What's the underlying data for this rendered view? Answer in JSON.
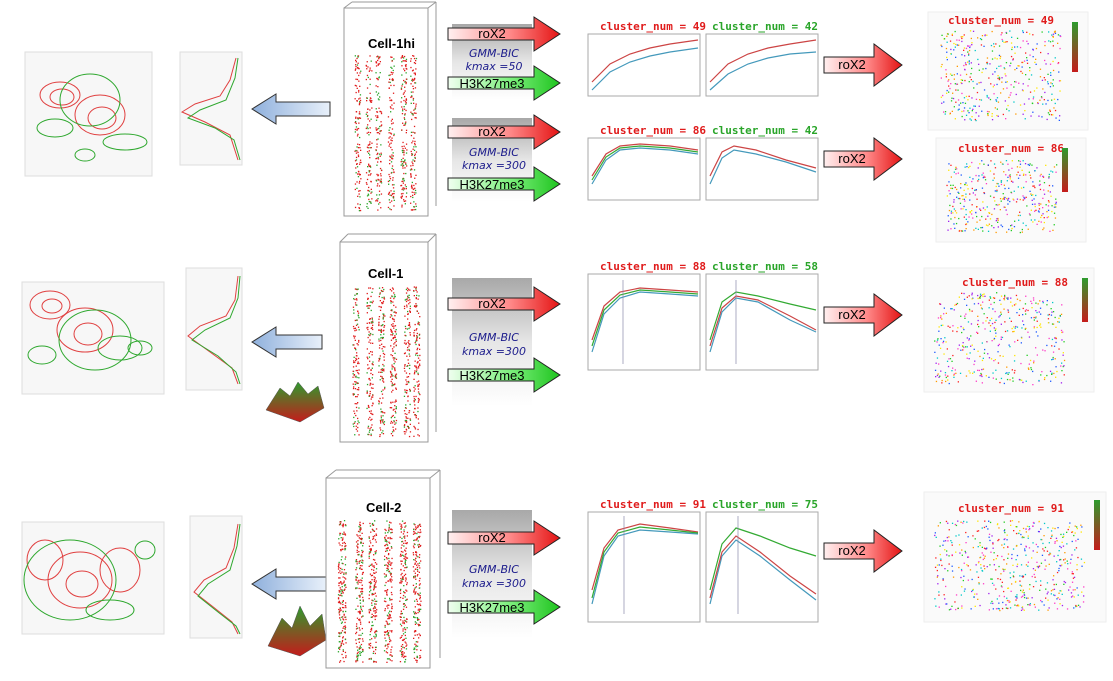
{
  "colors": {
    "red": "#e01b1b",
    "green": "#2aa52a",
    "arrow_red_light": "#ffd6d6",
    "arrow_green_light": "#d8ffd8",
    "arrow_blue": "#b9cde8",
    "gray_band": "#c8c8c8"
  },
  "rows": [
    {
      "cell_label": "Cell-1hi",
      "gmm": [
        "GMM-BIC",
        "kmax =50"
      ],
      "arrows": [
        "roX2",
        "H3K27me3"
      ],
      "cluster_red": "cluster_num = 49",
      "cluster_green": "cluster_num = 42",
      "out_arrow": "roX2",
      "out_cluster": "cluster_num = 49"
    },
    {
      "cell_label": "",
      "gmm": [
        "GMM-BIC",
        "kmax =300"
      ],
      "arrows": [
        "roX2",
        "H3K27me3"
      ],
      "cluster_red": "cluster_num = 86",
      "cluster_green": "cluster_num = 42",
      "out_arrow": "roX2",
      "out_cluster": "cluster_num = 86"
    },
    {
      "cell_label": "Cell-1",
      "gmm": [
        "GMM-BIC",
        "kmax =300"
      ],
      "arrows": [
        "roX2",
        "H3K27me3"
      ],
      "cluster_red": "cluster_num = 88",
      "cluster_green": "cluster_num = 58",
      "out_arrow": "roX2",
      "out_cluster": "cluster_num = 88"
    },
    {
      "cell_label": "Cell-2",
      "gmm": [
        "GMM-BIC",
        "kmax =300"
      ],
      "arrows": [
        "roX2",
        "H3K27me3"
      ],
      "cluster_red": "cluster_num = 91",
      "cluster_green": "cluster_num = 75",
      "out_arrow": "roX2",
      "out_cluster": "cluster_num = 91"
    }
  ]
}
